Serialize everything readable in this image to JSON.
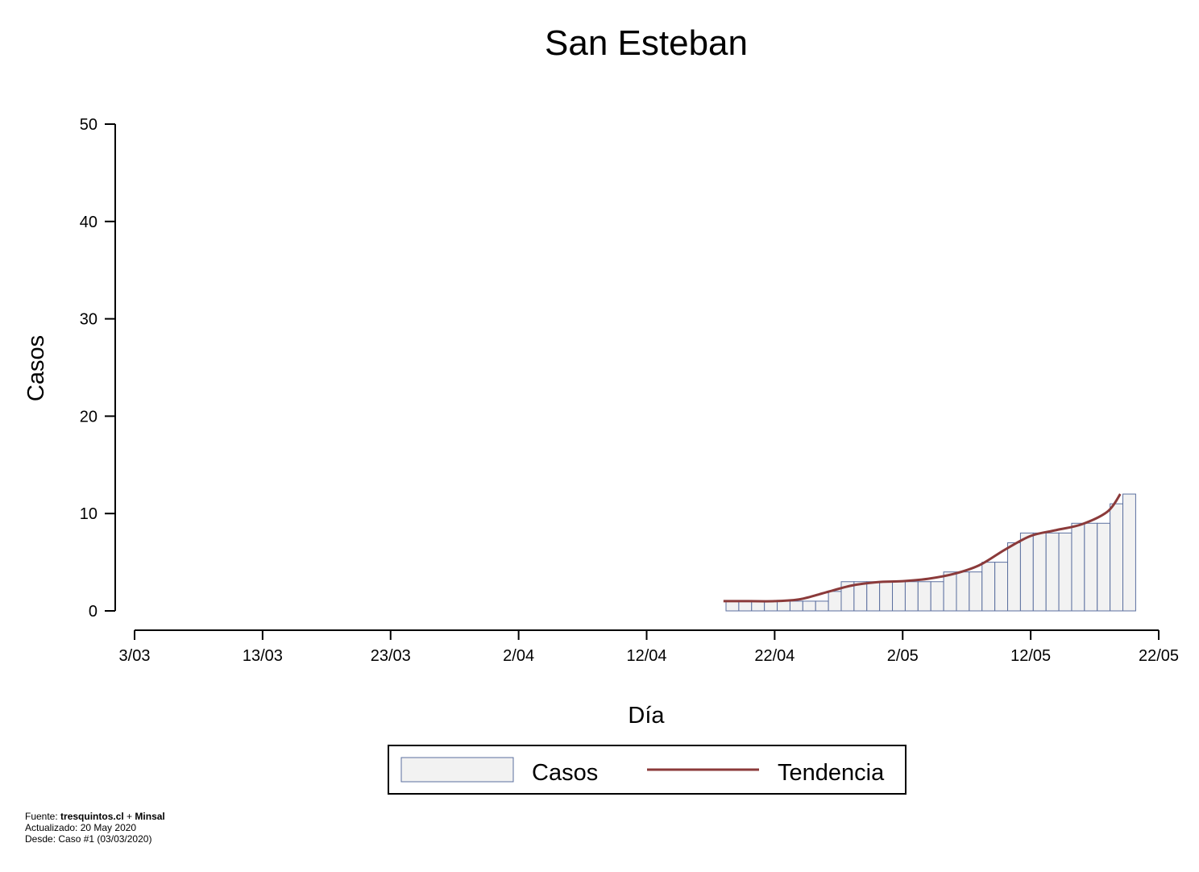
{
  "chart_data": {
    "type": "bar",
    "title": "San Esteban",
    "xlabel": "Día",
    "ylabel": "Casos",
    "x_range": [
      "2020-03-03",
      "2020-05-22"
    ],
    "ylim": [
      0,
      50
    ],
    "y_ticks": [
      0,
      10,
      20,
      30,
      40,
      50
    ],
    "x_tick_labels": [
      "3/03",
      "13/03",
      "23/03",
      "2/04",
      "12/04",
      "22/04",
      "2/05",
      "12/05",
      "22/05"
    ],
    "x_tick_dates": [
      "2020-03-03",
      "2020-03-13",
      "2020-03-23",
      "2020-04-02",
      "2020-04-12",
      "2020-04-22",
      "2020-05-02",
      "2020-05-12",
      "2020-05-22"
    ],
    "grid": false,
    "legend_position": "bottom",
    "series": [
      {
        "name": "Casos",
        "kind": "bar",
        "color_fill": "#f2f2f2",
        "color_stroke": "#5b6f9f",
        "points": [
          {
            "date": "2020-04-18",
            "value": 1
          },
          {
            "date": "2020-04-19",
            "value": 1
          },
          {
            "date": "2020-04-20",
            "value": 1
          },
          {
            "date": "2020-04-21",
            "value": 1
          },
          {
            "date": "2020-04-22",
            "value": 1
          },
          {
            "date": "2020-04-23",
            "value": 1
          },
          {
            "date": "2020-04-24",
            "value": 1
          },
          {
            "date": "2020-04-25",
            "value": 1
          },
          {
            "date": "2020-04-26",
            "value": 2
          },
          {
            "date": "2020-04-27",
            "value": 3
          },
          {
            "date": "2020-04-28",
            "value": 3
          },
          {
            "date": "2020-04-29",
            "value": 3
          },
          {
            "date": "2020-04-30",
            "value": 3
          },
          {
            "date": "2020-05-01",
            "value": 3
          },
          {
            "date": "2020-05-02",
            "value": 3
          },
          {
            "date": "2020-05-03",
            "value": 3
          },
          {
            "date": "2020-05-04",
            "value": 3
          },
          {
            "date": "2020-05-05",
            "value": 4
          },
          {
            "date": "2020-05-06",
            "value": 4
          },
          {
            "date": "2020-05-07",
            "value": 4
          },
          {
            "date": "2020-05-08",
            "value": 5
          },
          {
            "date": "2020-05-09",
            "value": 5
          },
          {
            "date": "2020-05-10",
            "value": 7
          },
          {
            "date": "2020-05-11",
            "value": 8
          },
          {
            "date": "2020-05-12",
            "value": 8
          },
          {
            "date": "2020-05-13",
            "value": 8
          },
          {
            "date": "2020-05-14",
            "value": 8
          },
          {
            "date": "2020-05-15",
            "value": 9
          },
          {
            "date": "2020-05-16",
            "value": 9
          },
          {
            "date": "2020-05-17",
            "value": 9
          },
          {
            "date": "2020-05-18",
            "value": 11
          },
          {
            "date": "2020-05-19",
            "value": 12
          }
        ]
      },
      {
        "name": "Tendencia",
        "kind": "line",
        "color": "#8b3a3a",
        "points": [
          {
            "date": "2020-04-18",
            "value": 1.0
          },
          {
            "date": "2020-04-20",
            "value": 1.0
          },
          {
            "date": "2020-04-22",
            "value": 1.0
          },
          {
            "date": "2020-04-24",
            "value": 1.2
          },
          {
            "date": "2020-04-26",
            "value": 1.9
          },
          {
            "date": "2020-04-28",
            "value": 2.6
          },
          {
            "date": "2020-04-30",
            "value": 2.95
          },
          {
            "date": "2020-05-02",
            "value": 3.05
          },
          {
            "date": "2020-05-04",
            "value": 3.3
          },
          {
            "date": "2020-05-06",
            "value": 3.8
          },
          {
            "date": "2020-05-08",
            "value": 4.7
          },
          {
            "date": "2020-05-10",
            "value": 6.3
          },
          {
            "date": "2020-05-12",
            "value": 7.7
          },
          {
            "date": "2020-05-14",
            "value": 8.3
          },
          {
            "date": "2020-05-16",
            "value": 8.9
          },
          {
            "date": "2020-05-18",
            "value": 10.2
          },
          {
            "date": "2020-05-19",
            "value": 12.0
          }
        ]
      }
    ]
  },
  "footer": {
    "fuente_label": "Fuente: ",
    "fuente_source1": "tresquintos.cl",
    "fuente_plus": " + ",
    "fuente_source2": "Minsal",
    "actualizado": "Actualizado: 20 May 2020",
    "desde": "Desde: Caso #1  (03/03/2020)"
  }
}
